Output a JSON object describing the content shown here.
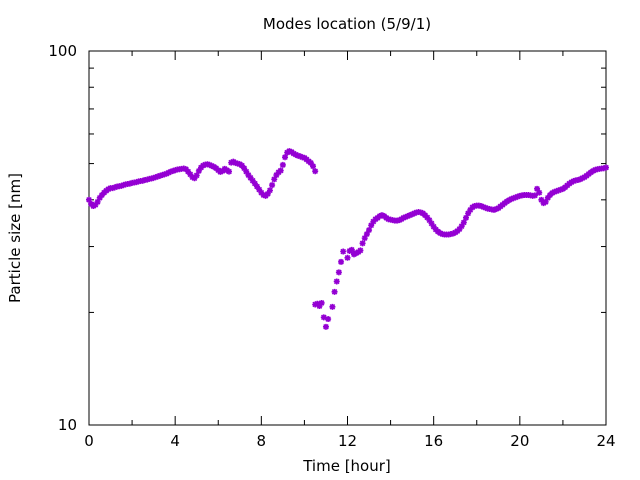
{
  "chart_data": {
    "type": "scatter",
    "title": "Modes location (5/9/1)",
    "xlabel": "Time [hour]",
    "ylabel": "Particle size [nm]",
    "xlim": [
      0,
      24
    ],
    "ylim": [
      10,
      100
    ],
    "yscale": "log",
    "grid": false,
    "x_ticks": [
      0,
      4,
      8,
      12,
      16,
      20,
      24
    ],
    "y_ticks": [
      10,
      100
    ],
    "marker_color": "#9400d3",
    "marker": "asterisk",
    "points": [
      [
        0.0,
        40.0
      ],
      [
        0.1,
        39.0
      ],
      [
        0.2,
        38.5
      ],
      [
        0.3,
        38.8
      ],
      [
        0.4,
        39.5
      ],
      [
        0.5,
        40.5
      ],
      [
        0.6,
        41.2
      ],
      [
        0.7,
        41.8
      ],
      [
        0.8,
        42.3
      ],
      [
        0.9,
        42.7
      ],
      [
        1.0,
        43.0
      ],
      [
        1.1,
        43.0
      ],
      [
        1.2,
        43.2
      ],
      [
        1.3,
        43.4
      ],
      [
        1.4,
        43.5
      ],
      [
        1.5,
        43.6
      ],
      [
        1.6,
        43.8
      ],
      [
        1.7,
        44.0
      ],
      [
        1.8,
        44.1
      ],
      [
        1.9,
        44.2
      ],
      [
        2.0,
        44.4
      ],
      [
        2.1,
        44.5
      ],
      [
        2.2,
        44.6
      ],
      [
        2.3,
        44.8
      ],
      [
        2.4,
        44.9
      ],
      [
        2.5,
        45.0
      ],
      [
        2.6,
        45.2
      ],
      [
        2.7,
        45.3
      ],
      [
        2.8,
        45.5
      ],
      [
        2.9,
        45.6
      ],
      [
        3.0,
        45.8
      ],
      [
        3.1,
        46.0
      ],
      [
        3.2,
        46.2
      ],
      [
        3.3,
        46.4
      ],
      [
        3.4,
        46.6
      ],
      [
        3.5,
        46.8
      ],
      [
        3.6,
        47.0
      ],
      [
        3.7,
        47.3
      ],
      [
        3.8,
        47.6
      ],
      [
        3.9,
        47.8
      ],
      [
        4.0,
        48.0
      ],
      [
        4.1,
        48.2
      ],
      [
        4.2,
        48.3
      ],
      [
        4.3,
        48.4
      ],
      [
        4.4,
        48.5
      ],
      [
        4.5,
        48.3
      ],
      [
        4.6,
        47.6
      ],
      [
        4.7,
        46.8
      ],
      [
        4.8,
        46.0
      ],
      [
        4.9,
        45.7
      ],
      [
        5.0,
        46.5
      ],
      [
        5.1,
        47.8
      ],
      [
        5.2,
        48.8
      ],
      [
        5.3,
        49.4
      ],
      [
        5.4,
        49.7
      ],
      [
        5.5,
        49.8
      ],
      [
        5.6,
        49.6
      ],
      [
        5.7,
        49.3
      ],
      [
        5.8,
        49.0
      ],
      [
        5.9,
        48.6
      ],
      [
        6.0,
        48.0
      ],
      [
        6.1,
        47.5
      ],
      [
        6.2,
        47.8
      ],
      [
        6.3,
        48.4
      ],
      [
        6.4,
        48.0
      ],
      [
        6.5,
        47.6
      ],
      [
        6.6,
        50.3
      ],
      [
        6.7,
        50.6
      ],
      [
        6.8,
        50.2
      ],
      [
        6.9,
        50.0
      ],
      [
        7.0,
        49.8
      ],
      [
        7.1,
        49.4
      ],
      [
        7.2,
        48.6
      ],
      [
        7.3,
        47.6
      ],
      [
        7.4,
        46.6
      ],
      [
        7.5,
        45.8
      ],
      [
        7.6,
        45.0
      ],
      [
        7.7,
        44.2
      ],
      [
        7.8,
        43.4
      ],
      [
        7.9,
        42.6
      ],
      [
        8.0,
        41.8
      ],
      [
        8.1,
        41.2
      ],
      [
        8.2,
        41.0
      ],
      [
        8.3,
        41.5
      ],
      [
        8.4,
        42.4
      ],
      [
        8.5,
        43.8
      ],
      [
        8.6,
        45.4
      ],
      [
        8.7,
        46.6
      ],
      [
        8.8,
        47.4
      ],
      [
        8.9,
        47.9
      ],
      [
        9.0,
        49.6
      ],
      [
        9.1,
        52.0
      ],
      [
        9.2,
        53.5
      ],
      [
        9.3,
        54.0
      ],
      [
        9.4,
        53.7
      ],
      [
        9.5,
        53.2
      ],
      [
        9.6,
        52.8
      ],
      [
        9.7,
        52.5
      ],
      [
        9.8,
        52.3
      ],
      [
        9.9,
        52.0
      ],
      [
        10.0,
        51.8
      ],
      [
        10.1,
        51.3
      ],
      [
        10.2,
        50.7
      ],
      [
        10.3,
        50.2
      ],
      [
        10.4,
        49.2
      ],
      [
        10.5,
        47.7
      ],
      [
        10.5,
        21.0
      ],
      [
        10.6,
        21.1
      ],
      [
        10.7,
        20.8
      ],
      [
        10.8,
        21.2
      ],
      [
        10.9,
        19.4
      ],
      [
        11.0,
        18.3
      ],
      [
        11.1,
        19.2
      ],
      [
        11.3,
        20.7
      ],
      [
        11.4,
        22.7
      ],
      [
        11.5,
        24.2
      ],
      [
        11.6,
        25.6
      ],
      [
        11.7,
        27.3
      ],
      [
        11.8,
        29.1
      ],
      [
        12.0,
        28.0
      ],
      [
        12.1,
        29.2
      ],
      [
        12.2,
        29.4
      ],
      [
        12.3,
        28.6
      ],
      [
        12.4,
        28.8
      ],
      [
        12.5,
        29.0
      ],
      [
        12.6,
        29.3
      ],
      [
        12.7,
        30.6
      ],
      [
        12.8,
        31.6
      ],
      [
        12.9,
        32.4
      ],
      [
        13.0,
        33.2
      ],
      [
        13.1,
        34.2
      ],
      [
        13.2,
        35.0
      ],
      [
        13.3,
        35.5
      ],
      [
        13.4,
        35.8
      ],
      [
        13.5,
        36.2
      ],
      [
        13.6,
        36.4
      ],
      [
        13.7,
        36.2
      ],
      [
        13.8,
        35.8
      ],
      [
        13.9,
        35.5
      ],
      [
        14.0,
        35.4
      ],
      [
        14.1,
        35.3
      ],
      [
        14.2,
        35.2
      ],
      [
        14.3,
        35.2
      ],
      [
        14.4,
        35.3
      ],
      [
        14.5,
        35.5
      ],
      [
        14.6,
        35.8
      ],
      [
        14.7,
        36.0
      ],
      [
        14.8,
        36.2
      ],
      [
        14.9,
        36.4
      ],
      [
        15.0,
        36.6
      ],
      [
        15.1,
        36.8
      ],
      [
        15.2,
        37.0
      ],
      [
        15.3,
        37.1
      ],
      [
        15.4,
        37.0
      ],
      [
        15.5,
        36.8
      ],
      [
        15.6,
        36.4
      ],
      [
        15.7,
        35.9
      ],
      [
        15.8,
        35.3
      ],
      [
        15.9,
        34.6
      ],
      [
        16.0,
        33.9
      ],
      [
        16.1,
        33.3
      ],
      [
        16.2,
        32.9
      ],
      [
        16.3,
        32.6
      ],
      [
        16.4,
        32.4
      ],
      [
        16.5,
        32.3
      ],
      [
        16.6,
        32.3
      ],
      [
        16.7,
        32.3
      ],
      [
        16.8,
        32.4
      ],
      [
        16.9,
        32.5
      ],
      [
        17.0,
        32.7
      ],
      [
        17.1,
        33.0
      ],
      [
        17.2,
        33.4
      ],
      [
        17.3,
        34.0
      ],
      [
        17.4,
        34.8
      ],
      [
        17.5,
        35.8
      ],
      [
        17.6,
        36.8
      ],
      [
        17.7,
        37.6
      ],
      [
        17.8,
        38.2
      ],
      [
        17.9,
        38.5
      ],
      [
        18.0,
        38.6
      ],
      [
        18.1,
        38.6
      ],
      [
        18.2,
        38.5
      ],
      [
        18.3,
        38.3
      ],
      [
        18.4,
        38.1
      ],
      [
        18.5,
        37.9
      ],
      [
        18.6,
        37.8
      ],
      [
        18.7,
        37.7
      ],
      [
        18.8,
        37.6
      ],
      [
        18.9,
        37.8
      ],
      [
        19.0,
        38.0
      ],
      [
        19.1,
        38.4
      ],
      [
        19.2,
        38.8
      ],
      [
        19.3,
        39.2
      ],
      [
        19.4,
        39.6
      ],
      [
        19.5,
        39.9
      ],
      [
        19.6,
        40.2
      ],
      [
        19.7,
        40.4
      ],
      [
        19.8,
        40.6
      ],
      [
        19.9,
        40.8
      ],
      [
        20.0,
        41.0
      ],
      [
        20.1,
        41.1
      ],
      [
        20.2,
        41.2
      ],
      [
        20.3,
        41.2
      ],
      [
        20.4,
        41.2
      ],
      [
        20.5,
        41.1
      ],
      [
        20.6,
        41.0
      ],
      [
        20.7,
        41.1
      ],
      [
        20.8,
        42.8
      ],
      [
        20.9,
        41.8
      ],
      [
        21.0,
        40.0
      ],
      [
        21.1,
        39.2
      ],
      [
        21.2,
        39.5
      ],
      [
        21.3,
        40.5
      ],
      [
        21.4,
        41.2
      ],
      [
        21.5,
        41.7
      ],
      [
        21.6,
        42.0
      ],
      [
        21.7,
        42.2
      ],
      [
        21.8,
        42.4
      ],
      [
        21.9,
        42.6
      ],
      [
        22.0,
        42.8
      ],
      [
        22.1,
        43.2
      ],
      [
        22.2,
        43.7
      ],
      [
        22.3,
        44.2
      ],
      [
        22.4,
        44.6
      ],
      [
        22.5,
        44.9
      ],
      [
        22.6,
        45.1
      ],
      [
        22.7,
        45.2
      ],
      [
        22.8,
        45.4
      ],
      [
        22.9,
        45.7
      ],
      [
        23.0,
        46.0
      ],
      [
        23.1,
        46.4
      ],
      [
        23.2,
        46.9
      ],
      [
        23.3,
        47.4
      ],
      [
        23.4,
        47.8
      ],
      [
        23.5,
        48.1
      ],
      [
        23.6,
        48.3
      ],
      [
        23.7,
        48.4
      ],
      [
        23.8,
        48.5
      ],
      [
        23.9,
        48.6
      ],
      [
        24.0,
        48.8
      ]
    ]
  }
}
